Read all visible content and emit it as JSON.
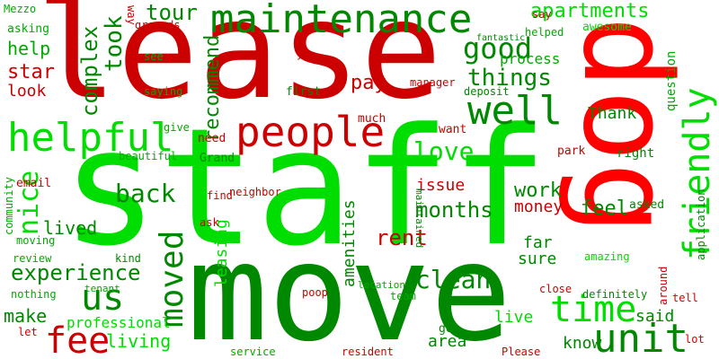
{
  "colors": {
    "bright_green": "#00dd00",
    "dark_green": "#008800",
    "light_green": "#00aa00",
    "red": "#cc0000",
    "bright_red": "#ff0000"
  },
  "words": [
    {
      "text": "staff",
      "color": "bright_green"
    },
    {
      "text": "move",
      "color": "dark_green"
    },
    {
      "text": "lease",
      "color": "red"
    },
    {
      "text": "dog",
      "color": "bright_red"
    },
    {
      "text": "maintenance",
      "color": "dark_green"
    },
    {
      "text": "helpful",
      "color": "bright_green"
    },
    {
      "text": "people",
      "color": "red"
    },
    {
      "text": "well",
      "color": "dark_green"
    },
    {
      "text": "friendly",
      "color": "bright_green"
    },
    {
      "text": "unit",
      "color": "dark_green"
    },
    {
      "text": "time",
      "color": "bright_green"
    },
    {
      "text": "us",
      "color": "dark_green"
    },
    {
      "text": "moved",
      "color": "dark_green"
    },
    {
      "text": "fee",
      "color": "red"
    },
    {
      "text": "experience",
      "color": "dark_green"
    },
    {
      "text": "good",
      "color": "dark_green"
    },
    {
      "text": "apartments",
      "color": "bright_green"
    },
    {
      "text": "love",
      "color": "bright_green"
    },
    {
      "text": "things",
      "color": "dark_green"
    },
    {
      "text": "back",
      "color": "dark_green"
    },
    {
      "text": "nice",
      "color": "bright_green"
    },
    {
      "text": "clean",
      "color": "dark_green"
    },
    {
      "text": "rent",
      "color": "red"
    },
    {
      "text": "months",
      "color": "dark_green"
    },
    {
      "text": "complex",
      "color": "dark_green"
    },
    {
      "text": "tour",
      "color": "dark_green"
    },
    {
      "text": "took",
      "color": "dark_green"
    },
    {
      "text": "recommend",
      "color": "dark_green"
    },
    {
      "text": "pay",
      "color": "red"
    },
    {
      "text": "star",
      "color": "red"
    },
    {
      "text": "help",
      "color": "light_green"
    },
    {
      "text": "look",
      "color": "red"
    },
    {
      "text": "living",
      "color": "bright_green"
    },
    {
      "text": "make",
      "color": "dark_green"
    },
    {
      "text": "lived",
      "color": "dark_green"
    },
    {
      "text": "feel",
      "color": "dark_green"
    },
    {
      "text": "work",
      "color": "dark_green"
    },
    {
      "text": "issue",
      "color": "red"
    },
    {
      "text": "money",
      "color": "red"
    },
    {
      "text": "amenities",
      "color": "dark_green"
    },
    {
      "text": "leasing",
      "color": "bright_green"
    },
    {
      "text": "far",
      "color": "dark_green"
    },
    {
      "text": "sure",
      "color": "dark_green"
    },
    {
      "text": "live",
      "color": "bright_green"
    },
    {
      "text": "know",
      "color": "dark_green"
    },
    {
      "text": "said",
      "color": "dark_green"
    },
    {
      "text": "area",
      "color": "dark_green"
    },
    {
      "text": "Thank",
      "color": "dark_green"
    },
    {
      "text": "question",
      "color": "light_green"
    },
    {
      "text": "process",
      "color": "light_green"
    },
    {
      "text": "professional",
      "color": "bright_green"
    },
    {
      "text": "asking",
      "color": "light_green"
    },
    {
      "text": "Mezzo",
      "color": "light_green"
    },
    {
      "text": "way",
      "color": "red"
    },
    {
      "text": "grounds",
      "color": "red"
    },
    {
      "text": "see",
      "color": "light_green"
    },
    {
      "text": "saying",
      "color": "light_green"
    },
    {
      "text": "first",
      "color": "dark_green"
    },
    {
      "text": "give",
      "color": "light_green"
    },
    {
      "text": "need",
      "color": "red"
    },
    {
      "text": "beautiful",
      "color": "light_green"
    },
    {
      "text": "Grand",
      "color": "dark_green"
    },
    {
      "text": "email",
      "color": "red"
    },
    {
      "text": "community",
      "color": "light_green"
    },
    {
      "text": "moving",
      "color": "light_green"
    },
    {
      "text": "review",
      "color": "light_green"
    },
    {
      "text": "nothing",
      "color": "light_green"
    },
    {
      "text": "let",
      "color": "red"
    },
    {
      "text": "kind",
      "color": "dark_green"
    },
    {
      "text": "tenant",
      "color": "light_green"
    },
    {
      "text": "find",
      "color": "red"
    },
    {
      "text": "neighbor",
      "color": "red"
    },
    {
      "text": "ask",
      "color": "red"
    },
    {
      "text": "location",
      "color": "light_green"
    },
    {
      "text": "team",
      "color": "light_green"
    },
    {
      "text": "poop",
      "color": "red"
    },
    {
      "text": "maintained",
      "color": "dark_green"
    },
    {
      "text": "service",
      "color": "light_green"
    },
    {
      "text": "resident",
      "color": "red"
    },
    {
      "text": "go",
      "color": "dark_green"
    },
    {
      "text": "Please",
      "color": "red"
    },
    {
      "text": "close",
      "color": "red"
    },
    {
      "text": "definitely",
      "color": "dark_green"
    },
    {
      "text": "around",
      "color": "red"
    },
    {
      "text": "tell",
      "color": "red"
    },
    {
      "text": "lot",
      "color": "red"
    },
    {
      "text": "amazing",
      "color": "bright_green"
    },
    {
      "text": "application",
      "color": "dark_green"
    },
    {
      "text": "asked",
      "color": "dark_green"
    },
    {
      "text": "right",
      "color": "dark_green"
    },
    {
      "text": "park",
      "color": "red"
    },
    {
      "text": "want",
      "color": "red"
    },
    {
      "text": "much",
      "color": "red"
    },
    {
      "text": "deposit",
      "color": "dark_green"
    },
    {
      "text": "manager",
      "color": "red"
    },
    {
      "text": "y",
      "color": "red"
    },
    {
      "text": "fantastic",
      "color": "dark_green"
    },
    {
      "text": "helped",
      "color": "light_green"
    },
    {
      "text": "awesome",
      "color": "bright_green"
    },
    {
      "text": "say",
      "color": "red"
    }
  ]
}
